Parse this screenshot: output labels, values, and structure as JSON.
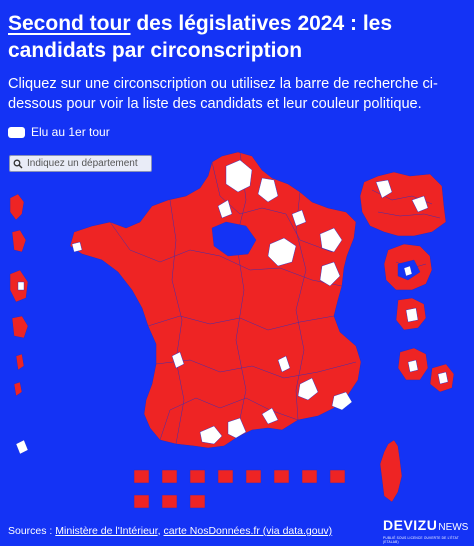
{
  "title": {
    "highlight": "Second tour",
    "rest": " des législatives 2024 : les candidats par circonscription"
  },
  "subtitle": "Cliquez sur une circonscription ou utilisez la barre de recherche ci-dessous pour voir la liste des candidats et leur couleur politique.",
  "legend": {
    "label": "Elu au 1er tour",
    "color": "#ffffff"
  },
  "search": {
    "placeholder": "Indiquez un département",
    "icon": "search-icon"
  },
  "map": {
    "background": "#1433f5",
    "second_round_color": "#ee2424",
    "elected_first_round_color": "#ffffff",
    "border_color": "#1a2fd0",
    "regions": [
      "metropolitan-france",
      "ile-de-france-inset",
      "corsica",
      "overseas-territories"
    ]
  },
  "footer": {
    "prefix": "Sources : ",
    "link1": "Ministère de l'Intérieur",
    "sep": ", ",
    "link2": "carte NosDonnées.fr (via data.gouv)"
  },
  "logo": {
    "brand": "DEVIZU",
    "brand2": "NEWS",
    "tagline": "PUBLIÉ SOUS LICENCE OUVERTE DE L'ÉTAT (ETALAB)"
  }
}
